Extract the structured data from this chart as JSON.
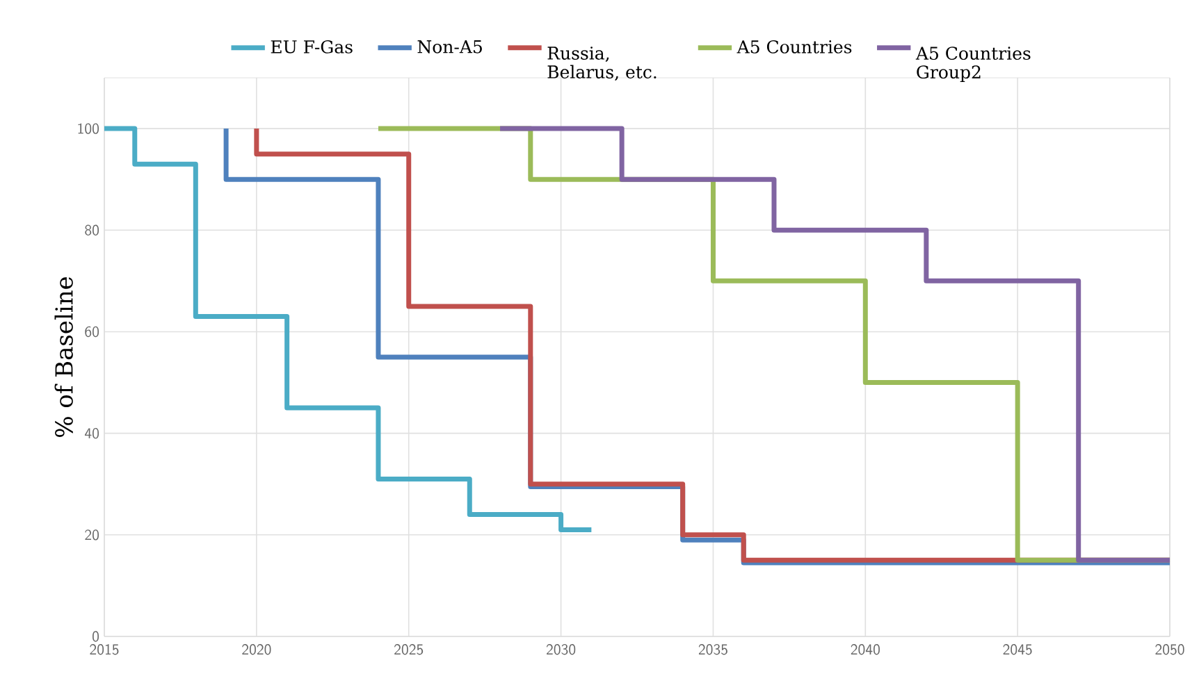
{
  "chart_data": {
    "type": "step",
    "ylabel": "% of Baseline",
    "xlim": [
      2015,
      2050
    ],
    "xticks": [
      2015,
      2020,
      2025,
      2030,
      2035,
      2040,
      2045,
      2050
    ],
    "ylim": [
      0,
      110
    ],
    "yticks": [
      0,
      20,
      40,
      60,
      80,
      100
    ],
    "grid": true,
    "legend": "top",
    "marker": "none",
    "line_style": "solid",
    "series": [
      {
        "name": "EU F-Gas",
        "color": "#4bacc6",
        "x": [
          2015,
          2016,
          2018,
          2021,
          2024,
          2027,
          2030,
          2031
        ],
        "values": [
          100,
          93,
          63,
          45,
          31,
          24,
          21,
          21
        ]
      },
      {
        "name": "Non-A5",
        "color": "#4f81bd",
        "x": [
          2019,
          2019,
          2024,
          2029,
          2034,
          2036,
          2050
        ],
        "values": [
          100,
          90,
          55,
          29.5,
          19,
          14.5,
          14.5
        ]
      },
      {
        "name": "Russia, Belarus, etc.",
        "color": "#c0504d",
        "x": [
          2020,
          2020,
          2025,
          2029,
          2034,
          2036,
          2050
        ],
        "values": [
          100,
          95,
          65,
          30,
          20,
          15,
          15
        ]
      },
      {
        "name": "A5 Countries",
        "color": "#9bbb59",
        "x": [
          2024,
          2029,
          2035,
          2040,
          2045,
          2050
        ],
        "values": [
          100,
          90,
          70,
          50,
          15,
          15
        ]
      },
      {
        "name": "A5 Countries Group2",
        "color": "#8064a2",
        "x": [
          2028,
          2032,
          2037,
          2042,
          2047,
          2050
        ],
        "values": [
          100,
          90,
          80,
          70,
          15,
          15
        ]
      }
    ]
  }
}
